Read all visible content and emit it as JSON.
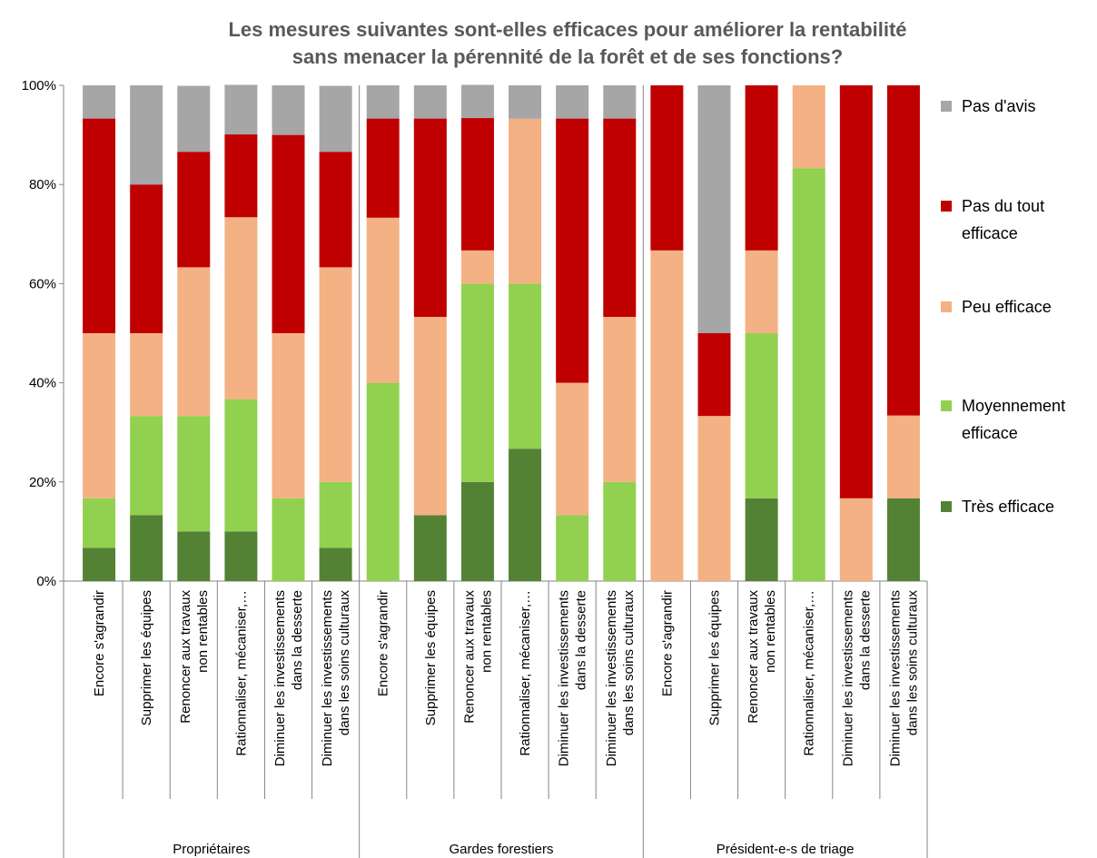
{
  "chart_data": {
    "type": "stacked_bar",
    "title": "Les mesures suivantes sont-elles efficaces pour améliorer la rentabilité\nsans menacer la pérennité de la forêt et de ses fonctions?",
    "groups": [
      {
        "name": "Propriétaires",
        "categories": [
          "Encore s'agrandir",
          "Supprimer les équipes",
          "Renoncer aux travaux\nnon rentables",
          "Rationnaliser, mécaniser,…",
          "Diminuer les investissements\ndans la desserte",
          "Diminuer les investissements\ndans les soins culturaux"
        ]
      },
      {
        "name": "Gardes forestiers",
        "categories": [
          "Encore s'agrandir",
          "Supprimer les équipes",
          "Renoncer aux travaux\nnon rentables",
          "Rationnaliser, mécaniser,…",
          "Diminuer les investissements\ndans la desserte",
          "Diminuer les investissements\ndans les soins culturaux"
        ]
      },
      {
        "name": "Président-e-s de triage",
        "categories": [
          "Encore s'agrandir",
          "Supprimer les équipes",
          "Renoncer aux travaux\nnon rentables",
          "Rationnaliser, mécaniser,…",
          "Diminuer les investissements\ndans la desserte",
          "Diminuer les investissements\ndans les soins culturaux"
        ]
      }
    ],
    "series": [
      {
        "name": "Très efficace",
        "color": "#548235",
        "values": [
          6.7,
          13.3,
          10,
          10,
          0,
          6.7,
          0,
          13.3,
          20,
          26.7,
          0,
          0,
          0,
          0,
          16.7,
          0,
          0,
          16.7
        ]
      },
      {
        "name": "Moyennement\nefficace",
        "color": "#92d050",
        "values": [
          10,
          20,
          23.3,
          26.7,
          16.7,
          13.3,
          40,
          0,
          40,
          33.3,
          13.3,
          20,
          0,
          0,
          33.3,
          83.3,
          0,
          0
        ]
      },
      {
        "name": "Peu efficace",
        "color": "#f4b183",
        "values": [
          33.3,
          16.7,
          30,
          36.7,
          33.3,
          43.3,
          33.3,
          40,
          6.7,
          33.3,
          26.7,
          33.3,
          66.7,
          33.3,
          16.7,
          16.7,
          16.7,
          16.7
        ]
      },
      {
        "name": "Pas du tout\nefficace",
        "color": "#c00000",
        "values": [
          43.3,
          30,
          23.3,
          16.7,
          40,
          23.3,
          20,
          40,
          26.7,
          0,
          53.3,
          40,
          33.3,
          16.7,
          33.3,
          0,
          83.3,
          66.6
        ]
      },
      {
        "name": "Pas d'avis",
        "color": "#a6a6a6",
        "values": [
          6.7,
          20,
          13.3,
          10,
          10,
          13.3,
          6.7,
          6.7,
          6.7,
          6.7,
          6.7,
          6.7,
          0,
          50,
          0,
          0,
          0,
          0
        ]
      }
    ],
    "ylim": [
      0,
      100
    ],
    "yticks": [
      {
        "value": 0,
        "label": "0%"
      },
      {
        "value": 20,
        "label": "20%"
      },
      {
        "value": 40,
        "label": "40%"
      },
      {
        "value": 60,
        "label": "60%"
      },
      {
        "value": 80,
        "label": "80%"
      },
      {
        "value": 100,
        "label": "100%"
      }
    ],
    "legend": "right"
  }
}
